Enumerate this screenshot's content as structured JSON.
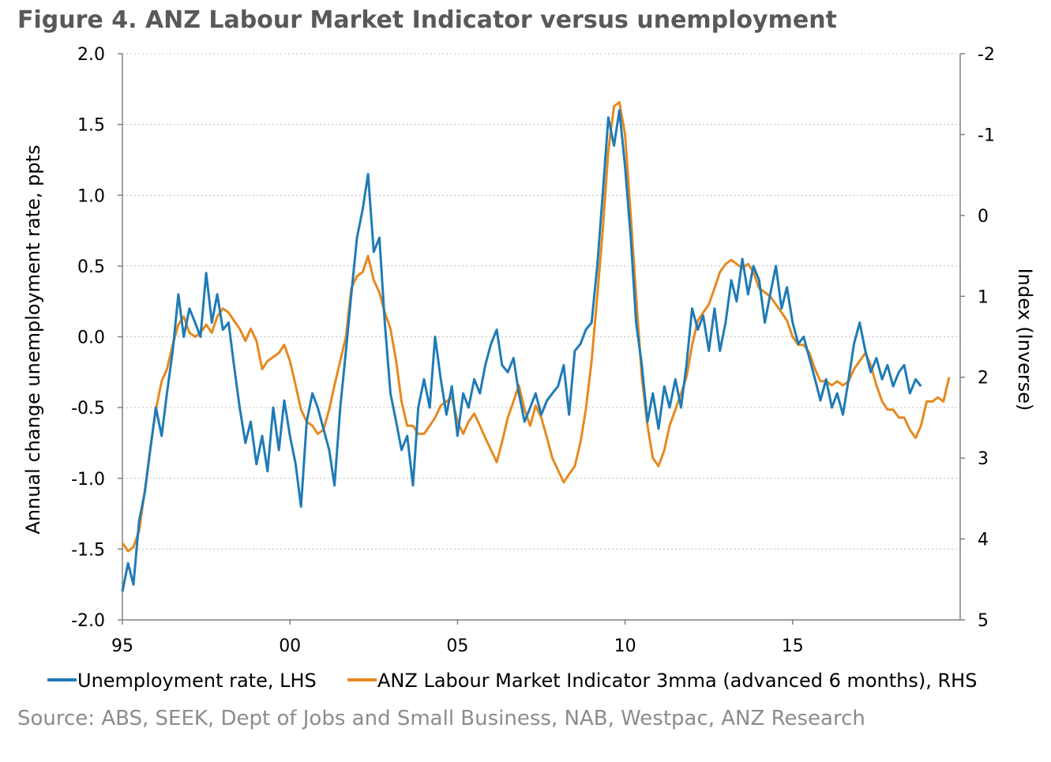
{
  "title": "Figure 4. ANZ Labour Market Indicator versus unemployment",
  "source": "Source: ABS, SEEK, Dept of Jobs and Small Business, NAB, Westpac, ANZ Research",
  "colors": {
    "unemployment": "#1f7bb6",
    "anz": "#e6891f",
    "grid": "#bfbfbf",
    "axis": "#808080"
  },
  "chart_data": {
    "type": "line",
    "title": "Figure 4. ANZ Labour Market Indicator versus unemployment",
    "x_start": 1995,
    "x_end": 2020,
    "xticks": [
      {
        "year": 1995,
        "label": "95"
      },
      {
        "year": 2000,
        "label": "00"
      },
      {
        "year": 2005,
        "label": "05"
      },
      {
        "year": 2010,
        "label": "10"
      },
      {
        "year": 2015,
        "label": "15"
      }
    ],
    "ylabel_left": "Annual change unemployment rate, ppts",
    "ylabel_right": "Index (Inverse)",
    "ylim_left": [
      -2.0,
      2.0
    ],
    "yticks_left": [
      "2.0",
      "1.5",
      "1.0",
      "0.5",
      "0.0",
      "-0.5",
      "-1.0",
      "-1.5",
      "-2.0"
    ],
    "ylim_right_inverted": [
      -2,
      5
    ],
    "yticks_right": [
      "-2",
      "-1",
      "0",
      "1",
      "2",
      "3",
      "4",
      "5"
    ],
    "legend_position": "bottom",
    "series": [
      {
        "name": "Unemployment rate, LHS",
        "axis": "left",
        "points": [
          [
            1995.0,
            -1.8
          ],
          [
            1995.17,
            -1.6
          ],
          [
            1995.33,
            -1.75
          ],
          [
            1995.5,
            -1.3
          ],
          [
            1995.67,
            -1.1
          ],
          [
            1995.83,
            -0.8
          ],
          [
            1996.0,
            -0.5
          ],
          [
            1996.17,
            -0.7
          ],
          [
            1996.33,
            -0.4
          ],
          [
            1996.5,
            -0.1
          ],
          [
            1996.67,
            0.3
          ],
          [
            1996.83,
            0.0
          ],
          [
            1997.0,
            0.2
          ],
          [
            1997.17,
            0.1
          ],
          [
            1997.33,
            0.0
          ],
          [
            1997.5,
            0.45
          ],
          [
            1997.67,
            0.1
          ],
          [
            1997.83,
            0.3
          ],
          [
            1998.0,
            0.05
          ],
          [
            1998.17,
            0.1
          ],
          [
            1998.33,
            -0.2
          ],
          [
            1998.5,
            -0.5
          ],
          [
            1998.67,
            -0.75
          ],
          [
            1998.83,
            -0.6
          ],
          [
            1999.0,
            -0.9
          ],
          [
            1999.17,
            -0.7
          ],
          [
            1999.33,
            -0.95
          ],
          [
            1999.5,
            -0.5
          ],
          [
            1999.67,
            -0.8
          ],
          [
            1999.83,
            -0.45
          ],
          [
            2000.0,
            -0.7
          ],
          [
            2000.17,
            -0.9
          ],
          [
            2000.33,
            -1.2
          ],
          [
            2000.5,
            -0.6
          ],
          [
            2000.67,
            -0.4
          ],
          [
            2000.83,
            -0.5
          ],
          [
            2001.0,
            -0.65
          ],
          [
            2001.17,
            -0.8
          ],
          [
            2001.33,
            -1.05
          ],
          [
            2001.5,
            -0.5
          ],
          [
            2001.67,
            -0.1
          ],
          [
            2001.83,
            0.3
          ],
          [
            2002.0,
            0.7
          ],
          [
            2002.17,
            0.9
          ],
          [
            2002.33,
            1.15
          ],
          [
            2002.5,
            0.6
          ],
          [
            2002.67,
            0.7
          ],
          [
            2002.83,
            0.1
          ],
          [
            2003.0,
            -0.4
          ],
          [
            2003.17,
            -0.6
          ],
          [
            2003.33,
            -0.8
          ],
          [
            2003.5,
            -0.7
          ],
          [
            2003.67,
            -1.05
          ],
          [
            2003.83,
            -0.5
          ],
          [
            2004.0,
            -0.3
          ],
          [
            2004.17,
            -0.5
          ],
          [
            2004.33,
            0.0
          ],
          [
            2004.5,
            -0.3
          ],
          [
            2004.67,
            -0.55
          ],
          [
            2004.83,
            -0.35
          ],
          [
            2005.0,
            -0.7
          ],
          [
            2005.17,
            -0.4
          ],
          [
            2005.33,
            -0.5
          ],
          [
            2005.5,
            -0.3
          ],
          [
            2005.67,
            -0.4
          ],
          [
            2005.83,
            -0.2
          ],
          [
            2006.0,
            -0.05
          ],
          [
            2006.17,
            0.05
          ],
          [
            2006.33,
            -0.2
          ],
          [
            2006.5,
            -0.25
          ],
          [
            2006.67,
            -0.15
          ],
          [
            2006.83,
            -0.4
          ],
          [
            2007.0,
            -0.6
          ],
          [
            2007.17,
            -0.5
          ],
          [
            2007.33,
            -0.4
          ],
          [
            2007.5,
            -0.55
          ],
          [
            2007.67,
            -0.45
          ],
          [
            2007.83,
            -0.4
          ],
          [
            2008.0,
            -0.35
          ],
          [
            2008.17,
            -0.2
          ],
          [
            2008.33,
            -0.55
          ],
          [
            2008.5,
            -0.1
          ],
          [
            2008.67,
            -0.05
          ],
          [
            2008.83,
            0.05
          ],
          [
            2009.0,
            0.1
          ],
          [
            2009.17,
            0.5
          ],
          [
            2009.33,
            1.0
          ],
          [
            2009.5,
            1.55
          ],
          [
            2009.67,
            1.35
          ],
          [
            2009.83,
            1.6
          ],
          [
            2010.0,
            1.2
          ],
          [
            2010.17,
            0.7
          ],
          [
            2010.33,
            0.1
          ],
          [
            2010.5,
            -0.2
          ],
          [
            2010.67,
            -0.6
          ],
          [
            2010.83,
            -0.4
          ],
          [
            2011.0,
            -0.65
          ],
          [
            2011.17,
            -0.35
          ],
          [
            2011.33,
            -0.5
          ],
          [
            2011.5,
            -0.3
          ],
          [
            2011.67,
            -0.5
          ],
          [
            2011.83,
            -0.2
          ],
          [
            2012.0,
            0.2
          ],
          [
            2012.17,
            0.05
          ],
          [
            2012.33,
            0.15
          ],
          [
            2012.5,
            -0.1
          ],
          [
            2012.67,
            0.2
          ],
          [
            2012.83,
            -0.1
          ],
          [
            2013.0,
            0.1
          ],
          [
            2013.17,
            0.4
          ],
          [
            2013.33,
            0.25
          ],
          [
            2013.5,
            0.55
          ],
          [
            2013.67,
            0.3
          ],
          [
            2013.83,
            0.5
          ],
          [
            2014.0,
            0.4
          ],
          [
            2014.17,
            0.1
          ],
          [
            2014.33,
            0.3
          ],
          [
            2014.5,
            0.5
          ],
          [
            2014.67,
            0.2
          ],
          [
            2014.83,
            0.35
          ],
          [
            2015.0,
            0.1
          ],
          [
            2015.17,
            -0.05
          ],
          [
            2015.33,
            0.0
          ],
          [
            2015.5,
            -0.15
          ],
          [
            2015.67,
            -0.3
          ],
          [
            2015.83,
            -0.45
          ],
          [
            2016.0,
            -0.3
          ],
          [
            2016.17,
            -0.5
          ],
          [
            2016.33,
            -0.4
          ],
          [
            2016.5,
            -0.55
          ],
          [
            2016.67,
            -0.3
          ],
          [
            2016.83,
            -0.05
          ],
          [
            2017.0,
            0.1
          ],
          [
            2017.17,
            -0.1
          ],
          [
            2017.33,
            -0.25
          ],
          [
            2017.5,
            -0.15
          ],
          [
            2017.67,
            -0.3
          ],
          [
            2017.83,
            -0.2
          ],
          [
            2018.0,
            -0.35
          ],
          [
            2018.17,
            -0.25
          ],
          [
            2018.33,
            -0.2
          ],
          [
            2018.5,
            -0.4
          ],
          [
            2018.67,
            -0.3
          ],
          [
            2018.83,
            -0.35
          ]
        ]
      },
      {
        "name": "ANZ Labour Market Indicator 3mma (advanced 6 months), RHS",
        "axis": "right",
        "points": [
          [
            1995.0,
            4.05
          ],
          [
            1995.17,
            4.15
          ],
          [
            1995.33,
            4.1
          ],
          [
            1995.5,
            3.9
          ],
          [
            1995.67,
            3.4
          ],
          [
            1995.83,
            2.9
          ],
          [
            1996.0,
            2.4
          ],
          [
            1996.17,
            2.05
          ],
          [
            1996.33,
            1.9
          ],
          [
            1996.5,
            1.6
          ],
          [
            1996.67,
            1.35
          ],
          [
            1996.83,
            1.25
          ],
          [
            1997.0,
            1.45
          ],
          [
            1997.17,
            1.5
          ],
          [
            1997.33,
            1.45
          ],
          [
            1997.5,
            1.35
          ],
          [
            1997.67,
            1.45
          ],
          [
            1997.83,
            1.25
          ],
          [
            1998.0,
            1.15
          ],
          [
            1998.17,
            1.2
          ],
          [
            1998.33,
            1.3
          ],
          [
            1998.5,
            1.4
          ],
          [
            1998.67,
            1.55
          ],
          [
            1998.83,
            1.4
          ],
          [
            1999.0,
            1.55
          ],
          [
            1999.17,
            1.9
          ],
          [
            1999.33,
            1.8
          ],
          [
            1999.5,
            1.75
          ],
          [
            1999.67,
            1.7
          ],
          [
            1999.83,
            1.6
          ],
          [
            2000.0,
            1.8
          ],
          [
            2000.17,
            2.1
          ],
          [
            2000.33,
            2.4
          ],
          [
            2000.5,
            2.55
          ],
          [
            2000.67,
            2.6
          ],
          [
            2000.83,
            2.7
          ],
          [
            2001.0,
            2.65
          ],
          [
            2001.17,
            2.4
          ],
          [
            2001.33,
            2.1
          ],
          [
            2001.5,
            1.8
          ],
          [
            2001.67,
            1.5
          ],
          [
            2001.83,
            0.9
          ],
          [
            2002.0,
            0.75
          ],
          [
            2002.17,
            0.7
          ],
          [
            2002.33,
            0.5
          ],
          [
            2002.5,
            0.8
          ],
          [
            2002.67,
            0.95
          ],
          [
            2002.83,
            1.2
          ],
          [
            2003.0,
            1.4
          ],
          [
            2003.17,
            1.8
          ],
          [
            2003.33,
            2.3
          ],
          [
            2003.5,
            2.6
          ],
          [
            2003.67,
            2.6
          ],
          [
            2003.83,
            2.7
          ],
          [
            2004.0,
            2.7
          ],
          [
            2004.17,
            2.6
          ],
          [
            2004.33,
            2.5
          ],
          [
            2004.5,
            2.35
          ],
          [
            2004.67,
            2.3
          ],
          [
            2004.83,
            2.25
          ],
          [
            2005.0,
            2.55
          ],
          [
            2005.17,
            2.7
          ],
          [
            2005.33,
            2.55
          ],
          [
            2005.5,
            2.45
          ],
          [
            2005.67,
            2.6
          ],
          [
            2005.83,
            2.75
          ],
          [
            2006.0,
            2.9
          ],
          [
            2006.17,
            3.05
          ],
          [
            2006.33,
            2.8
          ],
          [
            2006.5,
            2.5
          ],
          [
            2006.67,
            2.3
          ],
          [
            2006.83,
            2.1
          ],
          [
            2007.0,
            2.4
          ],
          [
            2007.17,
            2.6
          ],
          [
            2007.33,
            2.35
          ],
          [
            2007.5,
            2.5
          ],
          [
            2007.67,
            2.75
          ],
          [
            2007.83,
            3.0
          ],
          [
            2008.0,
            3.15
          ],
          [
            2008.17,
            3.3
          ],
          [
            2008.33,
            3.2
          ],
          [
            2008.5,
            3.1
          ],
          [
            2008.67,
            2.8
          ],
          [
            2008.83,
            2.4
          ],
          [
            2009.0,
            1.8
          ],
          [
            2009.17,
            1.0
          ],
          [
            2009.33,
            0.2
          ],
          [
            2009.5,
            -0.8
          ],
          [
            2009.67,
            -1.35
          ],
          [
            2009.83,
            -1.4
          ],
          [
            2010.0,
            -1.0
          ],
          [
            2010.17,
            0.0
          ],
          [
            2010.33,
            1.0
          ],
          [
            2010.5,
            2.0
          ],
          [
            2010.67,
            2.6
          ],
          [
            2010.83,
            3.0
          ],
          [
            2011.0,
            3.1
          ],
          [
            2011.17,
            2.9
          ],
          [
            2011.33,
            2.6
          ],
          [
            2011.5,
            2.4
          ],
          [
            2011.67,
            2.2
          ],
          [
            2011.83,
            2.0
          ],
          [
            2012.0,
            1.6
          ],
          [
            2012.17,
            1.3
          ],
          [
            2012.33,
            1.2
          ],
          [
            2012.5,
            1.1
          ],
          [
            2012.67,
            0.9
          ],
          [
            2012.83,
            0.7
          ],
          [
            2013.0,
            0.6
          ],
          [
            2013.17,
            0.55
          ],
          [
            2013.33,
            0.6
          ],
          [
            2013.5,
            0.65
          ],
          [
            2013.67,
            0.6
          ],
          [
            2013.83,
            0.7
          ],
          [
            2014.0,
            0.9
          ],
          [
            2014.17,
            0.95
          ],
          [
            2014.33,
            1.0
          ],
          [
            2014.5,
            1.1
          ],
          [
            2014.67,
            1.2
          ],
          [
            2014.83,
            1.3
          ],
          [
            2015.0,
            1.5
          ],
          [
            2015.17,
            1.6
          ],
          [
            2015.33,
            1.6
          ],
          [
            2015.5,
            1.7
          ],
          [
            2015.67,
            1.9
          ],
          [
            2015.83,
            2.05
          ],
          [
            2016.0,
            2.05
          ],
          [
            2016.17,
            2.1
          ],
          [
            2016.33,
            2.05
          ],
          [
            2016.5,
            2.1
          ],
          [
            2016.67,
            2.05
          ],
          [
            2016.83,
            1.9
          ],
          [
            2017.0,
            1.8
          ],
          [
            2017.17,
            1.7
          ],
          [
            2017.33,
            1.85
          ],
          [
            2017.5,
            2.1
          ],
          [
            2017.67,
            2.3
          ],
          [
            2017.83,
            2.4
          ],
          [
            2018.0,
            2.4
          ],
          [
            2018.17,
            2.5
          ],
          [
            2018.33,
            2.5
          ],
          [
            2018.5,
            2.65
          ],
          [
            2018.67,
            2.75
          ],
          [
            2018.83,
            2.6
          ],
          [
            2019.0,
            2.3
          ],
          [
            2019.17,
            2.3
          ],
          [
            2019.33,
            2.25
          ],
          [
            2019.5,
            2.3
          ],
          [
            2019.67,
            2.0
          ]
        ]
      }
    ]
  }
}
